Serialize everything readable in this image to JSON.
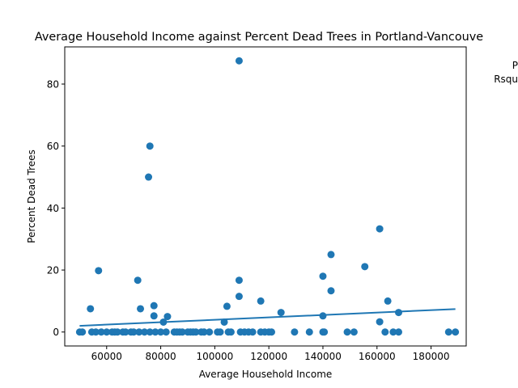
{
  "chart_data": {
    "type": "scatter",
    "title": "Average Household Income against Percent Dead Trees in Portland-Vancouve",
    "xlabel": "Average Household Income",
    "ylabel": "Percent Dead Trees",
    "xlim": [
      44500,
      193000
    ],
    "ylim": [
      -4.5,
      92
    ],
    "xticks": [
      60000,
      80000,
      100000,
      120000,
      140000,
      160000,
      180000
    ],
    "xtick_labels": [
      "60000",
      "80000",
      "100000",
      "120000",
      "140000",
      "160000",
      "180000"
    ],
    "yticks": [
      0,
      20,
      40,
      60,
      80
    ],
    "ytick_labels": [
      "0",
      "20",
      "40",
      "60",
      "80"
    ],
    "grid": false,
    "point_color": "#1f77b4",
    "line_color": "#1f77b4",
    "annotation_lines": [
      "P",
      "Rsqu"
    ],
    "trendline": {
      "x": [
        50000,
        189000
      ],
      "y": [
        2.0,
        7.4
      ]
    },
    "points": [
      {
        "x": 50000,
        "y": 0
      },
      {
        "x": 51000,
        "y": 0
      },
      {
        "x": 54000,
        "y": 7.5
      },
      {
        "x": 54500,
        "y": 0
      },
      {
        "x": 56000,
        "y": 0
      },
      {
        "x": 57000,
        "y": 19.8
      },
      {
        "x": 58000,
        "y": 0
      },
      {
        "x": 60000,
        "y": 0
      },
      {
        "x": 62000,
        "y": 0
      },
      {
        "x": 63000,
        "y": 0
      },
      {
        "x": 64000,
        "y": 0
      },
      {
        "x": 66000,
        "y": 0
      },
      {
        "x": 67000,
        "y": 0
      },
      {
        "x": 69000,
        "y": 0
      },
      {
        "x": 70000,
        "y": 0
      },
      {
        "x": 71500,
        "y": 16.7
      },
      {
        "x": 72000,
        "y": 0
      },
      {
        "x": 72500,
        "y": 7.5
      },
      {
        "x": 74000,
        "y": 0
      },
      {
        "x": 75500,
        "y": 50
      },
      {
        "x": 76000,
        "y": 60
      },
      {
        "x": 76000,
        "y": 0
      },
      {
        "x": 77500,
        "y": 8.5
      },
      {
        "x": 77500,
        "y": 5.2
      },
      {
        "x": 78000,
        "y": 0
      },
      {
        "x": 80000,
        "y": 0
      },
      {
        "x": 81000,
        "y": 3.2
      },
      {
        "x": 82000,
        "y": 0
      },
      {
        "x": 82500,
        "y": 5
      },
      {
        "x": 85000,
        "y": 0
      },
      {
        "x": 86000,
        "y": 0
      },
      {
        "x": 87000,
        "y": 0
      },
      {
        "x": 88000,
        "y": 0
      },
      {
        "x": 90000,
        "y": 0
      },
      {
        "x": 91000,
        "y": 0
      },
      {
        "x": 92000,
        "y": 0
      },
      {
        "x": 93000,
        "y": 0
      },
      {
        "x": 95000,
        "y": 0
      },
      {
        "x": 96000,
        "y": 0
      },
      {
        "x": 98000,
        "y": 0
      },
      {
        "x": 101000,
        "y": 0
      },
      {
        "x": 102000,
        "y": 0
      },
      {
        "x": 103500,
        "y": 3.2
      },
      {
        "x": 104500,
        "y": 8.3
      },
      {
        "x": 105000,
        "y": 0
      },
      {
        "x": 106000,
        "y": 0
      },
      {
        "x": 109000,
        "y": 11.5
      },
      {
        "x": 109000,
        "y": 16.7
      },
      {
        "x": 109000,
        "y": 87.5
      },
      {
        "x": 109500,
        "y": 0
      },
      {
        "x": 111000,
        "y": 0
      },
      {
        "x": 112500,
        "y": 0
      },
      {
        "x": 114000,
        "y": 0
      },
      {
        "x": 117000,
        "y": 10
      },
      {
        "x": 117000,
        "y": 0
      },
      {
        "x": 118500,
        "y": 0
      },
      {
        "x": 120000,
        "y": 0
      },
      {
        "x": 121000,
        "y": 0
      },
      {
        "x": 124500,
        "y": 6.3
      },
      {
        "x": 129500,
        "y": 0
      },
      {
        "x": 135000,
        "y": 0
      },
      {
        "x": 140000,
        "y": 18
      },
      {
        "x": 140000,
        "y": 5.2
      },
      {
        "x": 140000,
        "y": 0
      },
      {
        "x": 140500,
        "y": 0
      },
      {
        "x": 143000,
        "y": 13.3
      },
      {
        "x": 143000,
        "y": 25
      },
      {
        "x": 149000,
        "y": 0
      },
      {
        "x": 151500,
        "y": 0
      },
      {
        "x": 155500,
        "y": 21.1
      },
      {
        "x": 161000,
        "y": 33.3
      },
      {
        "x": 161000,
        "y": 3.3
      },
      {
        "x": 163000,
        "y": 0
      },
      {
        "x": 164000,
        "y": 10
      },
      {
        "x": 166000,
        "y": 0
      },
      {
        "x": 168000,
        "y": 6.3
      },
      {
        "x": 168000,
        "y": 0
      },
      {
        "x": 186500,
        "y": 0
      },
      {
        "x": 189000,
        "y": 0
      }
    ]
  }
}
